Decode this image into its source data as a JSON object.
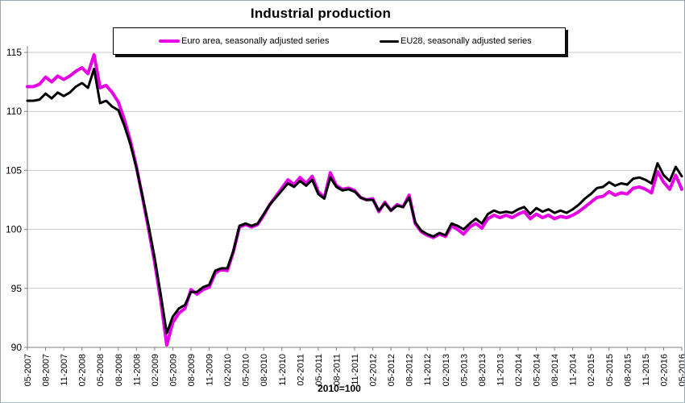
{
  "chart_data": {
    "type": "line",
    "title": "Industrial production",
    "footnote": "2010=100",
    "x_label_format": "MM-YYYY",
    "x_tick_every": 3,
    "ylim": [
      90,
      115
    ],
    "yticks": [
      90,
      95,
      100,
      105,
      110,
      115
    ],
    "grid": "horizontal",
    "legend_position": "top-center-boxed",
    "axis_color": "#808080",
    "gridline_color": "#c9c9c9",
    "months": [
      "05-2007",
      "06-2007",
      "07-2007",
      "08-2007",
      "09-2007",
      "10-2007",
      "11-2007",
      "12-2007",
      "01-2008",
      "02-2008",
      "03-2008",
      "04-2008",
      "05-2008",
      "06-2008",
      "07-2008",
      "08-2008",
      "09-2008",
      "10-2008",
      "11-2008",
      "12-2008",
      "01-2009",
      "02-2009",
      "03-2009",
      "04-2009",
      "05-2009",
      "06-2009",
      "07-2009",
      "08-2009",
      "09-2009",
      "10-2009",
      "11-2009",
      "12-2009",
      "01-2010",
      "02-2010",
      "03-2010",
      "04-2010",
      "05-2010",
      "06-2010",
      "07-2010",
      "08-2010",
      "09-2010",
      "10-2010",
      "11-2010",
      "12-2010",
      "01-2011",
      "02-2011",
      "03-2011",
      "04-2011",
      "05-2011",
      "06-2011",
      "07-2011",
      "08-2011",
      "09-2011",
      "10-2011",
      "11-2011",
      "12-2011",
      "01-2012",
      "02-2012",
      "03-2012",
      "04-2012",
      "05-2012",
      "06-2012",
      "07-2012",
      "08-2012",
      "09-2012",
      "10-2012",
      "11-2012",
      "12-2012",
      "01-2013",
      "02-2013",
      "03-2013",
      "04-2013",
      "05-2013",
      "06-2013",
      "07-2013",
      "08-2013",
      "09-2013",
      "10-2013",
      "11-2013",
      "12-2013",
      "01-2014",
      "02-2014",
      "03-2014",
      "04-2014",
      "05-2014",
      "06-2014",
      "07-2014",
      "08-2014",
      "09-2014",
      "10-2014",
      "11-2014",
      "12-2014",
      "01-2015",
      "02-2015",
      "03-2015",
      "04-2015",
      "05-2015",
      "06-2015",
      "07-2015",
      "08-2015",
      "09-2015",
      "10-2015",
      "11-2015",
      "12-2015",
      "01-2016",
      "02-2016",
      "03-2016",
      "04-2016",
      "05-2016"
    ],
    "series": [
      {
        "name": "Euro area, seasonally adjusted series",
        "color": "#e600e6",
        "stroke_width": 4,
        "values": [
          112.1,
          112.1,
          112.3,
          112.9,
          112.5,
          113.0,
          112.7,
          113.0,
          113.4,
          113.7,
          113.2,
          114.8,
          112.0,
          112.2,
          111.6,
          110.8,
          109.3,
          107.5,
          105.3,
          102.7,
          100.0,
          97.2,
          94.0,
          90.2,
          92.1,
          92.9,
          93.3,
          94.9,
          94.5,
          94.9,
          95.1,
          96.3,
          96.6,
          96.5,
          98.1,
          100.2,
          100.4,
          100.2,
          100.4,
          101.2,
          102.1,
          102.8,
          103.5,
          104.2,
          103.8,
          104.4,
          103.9,
          104.5,
          103.2,
          102.7,
          104.8,
          103.7,
          103.4,
          103.5,
          103.3,
          102.7,
          102.5,
          102.6,
          101.5,
          102.3,
          101.6,
          102.1,
          101.9,
          102.9,
          100.5,
          99.8,
          99.5,
          99.3,
          99.6,
          99.4,
          100.3,
          100.0,
          99.6,
          100.2,
          100.5,
          100.1,
          100.9,
          101.2,
          101.0,
          101.2,
          101.0,
          101.3,
          101.5,
          100.9,
          101.3,
          101.0,
          101.2,
          100.9,
          101.1,
          101.0,
          101.2,
          101.5,
          101.9,
          102.3,
          102.7,
          102.8,
          103.2,
          102.9,
          103.1,
          103.0,
          103.5,
          103.6,
          103.4,
          103.1,
          104.9,
          104.0,
          103.4,
          104.6,
          103.4
        ]
      },
      {
        "name": "EU28, seasonally adjusted series",
        "color": "#000000",
        "stroke_width": 3,
        "values": [
          110.9,
          110.9,
          111.0,
          111.5,
          111.1,
          111.6,
          111.3,
          111.6,
          112.1,
          112.4,
          112.0,
          113.6,
          110.7,
          110.9,
          110.4,
          110.1,
          108.8,
          107.2,
          105.2,
          102.8,
          100.3,
          97.6,
          94.5,
          91.2,
          92.6,
          93.3,
          93.6,
          94.7,
          94.7,
          95.1,
          95.3,
          96.5,
          96.7,
          96.7,
          98.2,
          100.3,
          100.5,
          100.3,
          100.5,
          101.3,
          102.1,
          102.7,
          103.3,
          103.9,
          103.6,
          104.1,
          103.7,
          104.2,
          103.0,
          102.6,
          104.4,
          103.6,
          103.3,
          103.4,
          103.2,
          102.7,
          102.5,
          102.5,
          101.6,
          102.2,
          101.6,
          102.0,
          101.9,
          102.7,
          100.6,
          99.9,
          99.6,
          99.4,
          99.7,
          99.5,
          100.5,
          100.3,
          100.0,
          100.5,
          100.9,
          100.5,
          101.3,
          101.6,
          101.4,
          101.5,
          101.4,
          101.7,
          101.9,
          101.3,
          101.8,
          101.5,
          101.7,
          101.4,
          101.6,
          101.4,
          101.7,
          102.1,
          102.6,
          103.0,
          103.5,
          103.6,
          104.0,
          103.7,
          103.9,
          103.8,
          104.3,
          104.4,
          104.2,
          103.9,
          105.6,
          104.6,
          104.1,
          105.3,
          104.5
        ]
      }
    ]
  }
}
